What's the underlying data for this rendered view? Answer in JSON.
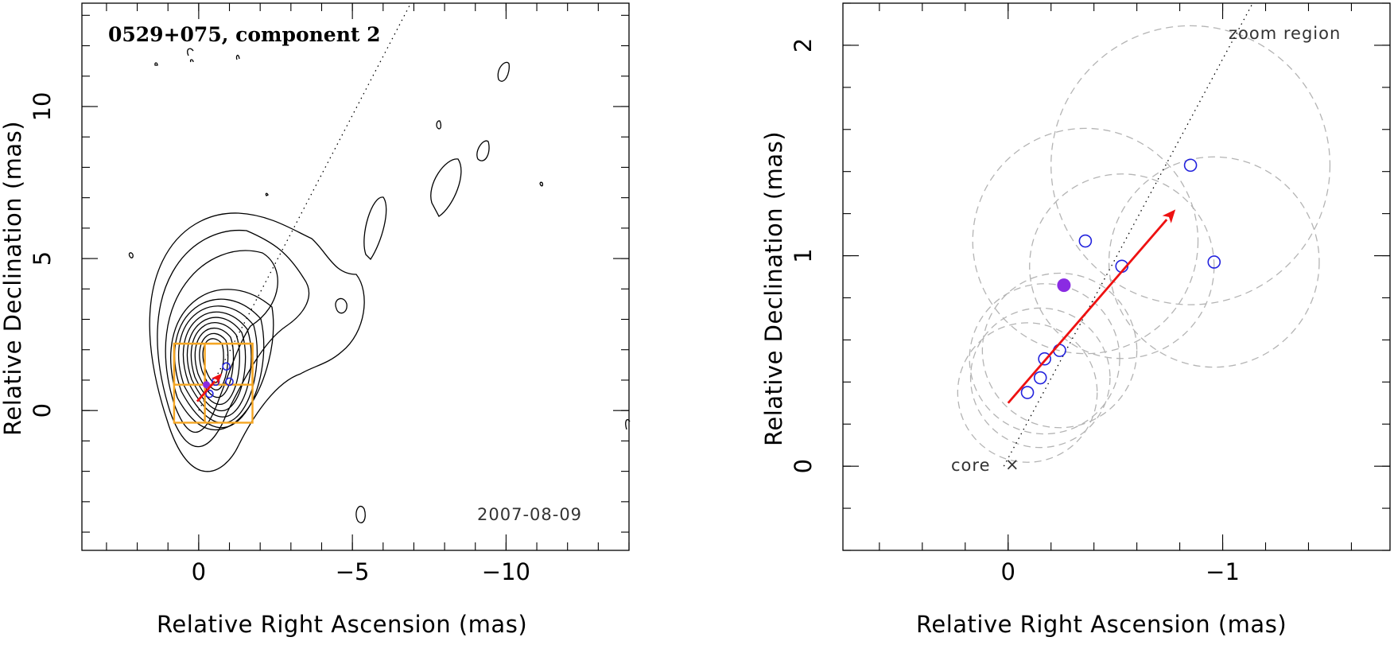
{
  "chart_data": [
    {
      "type": "scatter",
      "panel": "left",
      "title": "0529+075, component 2",
      "date_label": "2007-08-09",
      "xlabel": "Relative Right Ascension (mas)",
      "ylabel": "Relative Declination (mas)",
      "xlim": [
        3.8,
        -14
      ],
      "ylim": [
        -4.6,
        13.4
      ],
      "x_axis_reversed": true,
      "xticks": [
        0,
        -5,
        -10
      ],
      "xtick_labels": [
        "0",
        "−5",
        "−10"
      ],
      "yticks": [
        0,
        5,
        10
      ],
      "ytick_labels": [
        "0",
        "5",
        "10"
      ],
      "core": {
        "x": 0,
        "y": 0
      },
      "contour_levels": 12,
      "jet_axis": {
        "x1": 0.0,
        "y1": 0.0,
        "x2": -6.9,
        "y2": 13.4
      },
      "zoom_region": {
        "xmin": -1.75,
        "xmax": 0.8,
        "ymin": -0.4,
        "ymax": 2.2
      },
      "zoom_subregion": {
        "xmin": -1.75,
        "xmax": 0.8,
        "ymin": 0.85,
        "ymax": 2.2
      },
      "component_positions": [
        {
          "x": -0.35,
          "y": 0.55
        },
        {
          "x": -0.55,
          "y": 0.95
        },
        {
          "x": -0.9,
          "y": 1.45
        },
        {
          "x": -1.0,
          "y": 0.95
        }
      ],
      "mean_position": {
        "x": -0.25,
        "y": 0.85
      },
      "velocity_vector": {
        "x1": 0.05,
        "y1": 0.3,
        "x2": -0.75,
        "y2": 1.22
      }
    },
    {
      "type": "scatter",
      "panel": "right",
      "title": "",
      "xlabel": "Relative Right Ascension (mas)",
      "ylabel": "Relative Declination (mas)",
      "xlim": [
        0.77,
        -1.78
      ],
      "ylim": [
        -0.4,
        2.2
      ],
      "x_axis_reversed": true,
      "xticks": [
        0,
        -1
      ],
      "xtick_labels": [
        "0",
        "−1"
      ],
      "yticks": [
        0,
        1,
        2
      ],
      "ytick_labels": [
        "0",
        "1",
        "2"
      ],
      "core_label": "core",
      "core_marker": "×",
      "core_marker_position": {
        "x": 0,
        "y": 0
      },
      "zoom_label": "zoom region",
      "jet_axis": {
        "x1": 0.02,
        "y1": 0.0,
        "x2": -1.14,
        "y2": 2.2
      },
      "components": [
        {
          "x": -0.09,
          "y": 0.35
        },
        {
          "x": -0.15,
          "y": 0.42
        },
        {
          "x": -0.17,
          "y": 0.51
        },
        {
          "x": -0.24,
          "y": 0.55
        },
        {
          "x": -0.36,
          "y": 1.07
        },
        {
          "x": -0.53,
          "y": 0.95
        },
        {
          "x": -0.85,
          "y": 1.43
        },
        {
          "x": -0.96,
          "y": 0.97
        }
      ],
      "mean_position": {
        "x": -0.26,
        "y": 0.86
      },
      "velocity_vector": {
        "x1": 0.0,
        "y1": 0.3,
        "x2": -0.78,
        "y2": 1.22
      },
      "component_sizes": [
        {
          "x": -0.09,
          "y": 0.35,
          "d": 0.65
        },
        {
          "x": -0.15,
          "y": 0.42,
          "d": 0.65
        },
        {
          "x": -0.17,
          "y": 0.51,
          "d": 0.7
        },
        {
          "x": -0.24,
          "y": 0.55,
          "d": 0.72
        },
        {
          "x": -0.36,
          "y": 1.07,
          "d": 1.05
        },
        {
          "x": -0.53,
          "y": 0.95,
          "d": 0.86
        },
        {
          "x": -0.85,
          "y": 1.43,
          "d": 1.3
        },
        {
          "x": -0.96,
          "y": 0.97,
          "d": 0.98
        }
      ]
    }
  ]
}
